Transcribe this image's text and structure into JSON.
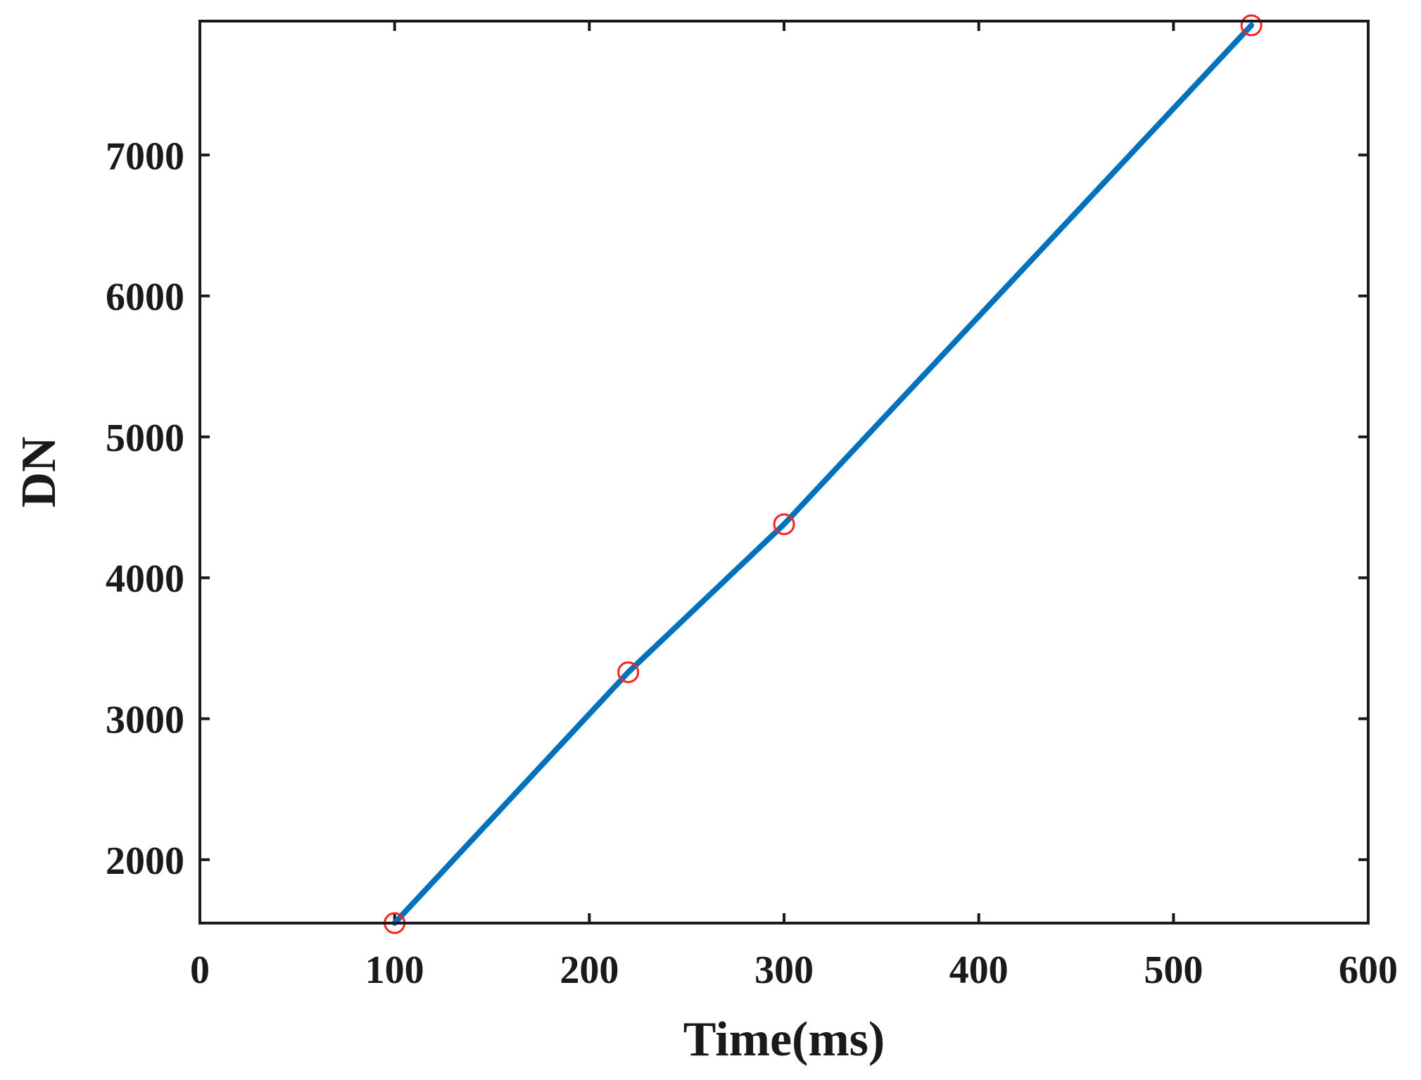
{
  "chart_data": {
    "type": "line",
    "title": "",
    "xlabel": "Time(ms)",
    "ylabel": "DN",
    "xlim": [
      0,
      600
    ],
    "ylim": [
      1550,
      7950
    ],
    "xticks": [
      0,
      100,
      200,
      300,
      400,
      500,
      600
    ],
    "yticks": [
      2000,
      3000,
      4000,
      5000,
      6000,
      7000
    ],
    "grid": false,
    "legend": "none",
    "series": [
      {
        "style": "line",
        "color": "#0072BD",
        "x": [
          100,
          220,
          300,
          540
        ],
        "y": [
          1550,
          3330,
          4380,
          7920
        ]
      },
      {
        "style": "markers",
        "marker": "circle",
        "color": "#FF2020",
        "x": [
          100,
          220,
          300,
          540
        ],
        "y": [
          1550,
          3330,
          4380,
          7920
        ]
      }
    ]
  }
}
